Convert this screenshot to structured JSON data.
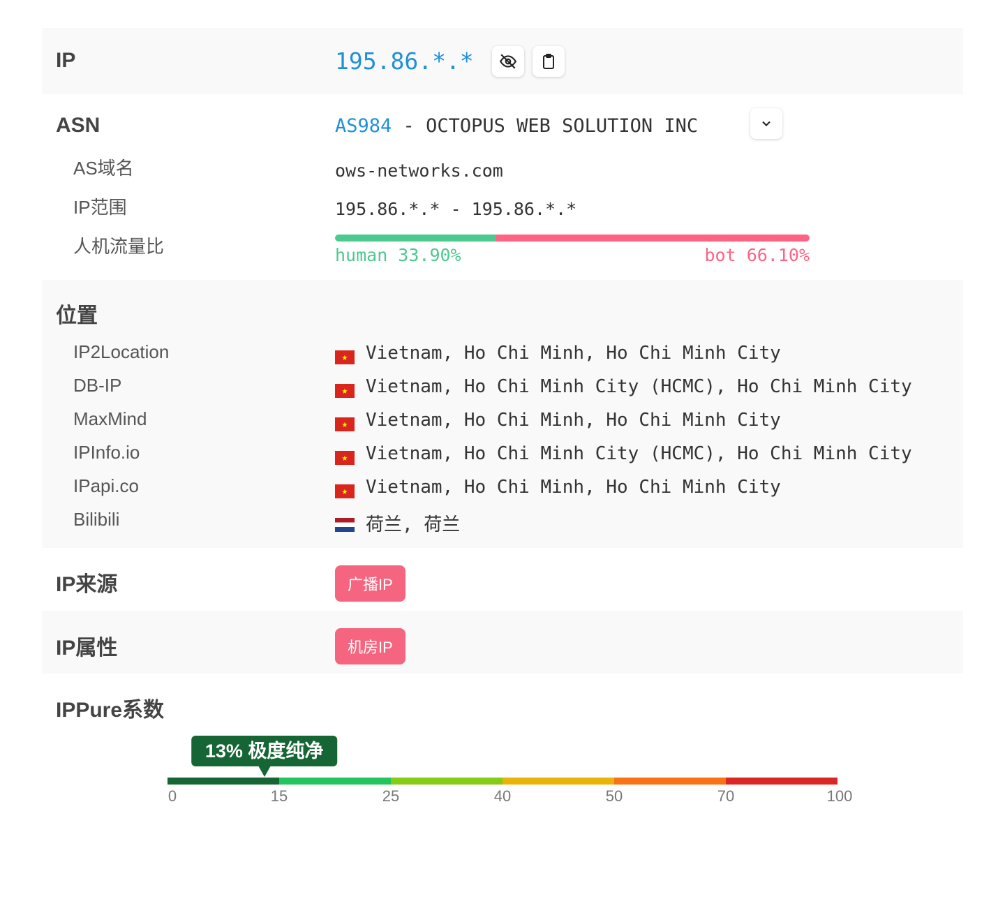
{
  "ip": {
    "label": "IP",
    "value": "195.86.*.*",
    "hide_icon": "eye-off-icon",
    "copy_icon": "clipboard-icon"
  },
  "asn": {
    "label": "ASN",
    "as_number": "AS984",
    "separator": " - ",
    "org": "OCTOPUS WEB SOLUTION INC",
    "expand_icon": "chevron-down-icon",
    "domain_label": "AS域名",
    "domain": "ows-networks.com",
    "range_label": "IP范围",
    "range": "195.86.*.* - 195.86.*.*",
    "traffic_label": "人机流量比",
    "human_label": "human 33.90%",
    "bot_label": "bot 66.10%",
    "human_percent": 33.9,
    "bot_percent": 66.1,
    "human_color": "#4cc98e",
    "bot_color": "#ff6384"
  },
  "location": {
    "label": "位置",
    "items": [
      {
        "source": "IP2Location",
        "flag": "vn",
        "text": "Vietnam, Ho Chi Minh, Ho Chi Minh City"
      },
      {
        "source": "DB-IP",
        "flag": "vn",
        "text": "Vietnam, Ho Chi Minh City (HCMC), Ho Chi Minh City"
      },
      {
        "source": "MaxMind",
        "flag": "vn",
        "text": "Vietnam, Ho Chi Minh, Ho Chi Minh City"
      },
      {
        "source": "IPInfo.io",
        "flag": "vn",
        "text": "Vietnam, Ho Chi Minh City (HCMC), Ho Chi Minh City"
      },
      {
        "source": "IPapi.co",
        "flag": "vn",
        "text": "Vietnam, Ho Chi Minh, Ho Chi Minh City"
      },
      {
        "source": "Bilibili",
        "flag": "nl",
        "text": "荷兰, 荷兰"
      }
    ]
  },
  "source": {
    "label": "IP来源",
    "tag": "广播IP"
  },
  "attr": {
    "label": "IP属性",
    "tag": "机房IP"
  },
  "ippure": {
    "label": "IPPure系数",
    "score": 13,
    "badge": "13% 极度纯净",
    "ticks": [
      "0",
      "15",
      "25",
      "40",
      "50",
      "70",
      "100"
    ],
    "colors": [
      "#166534",
      "#22c55e",
      "#84cc16",
      "#eab308",
      "#f97316",
      "#dc2626"
    ]
  }
}
